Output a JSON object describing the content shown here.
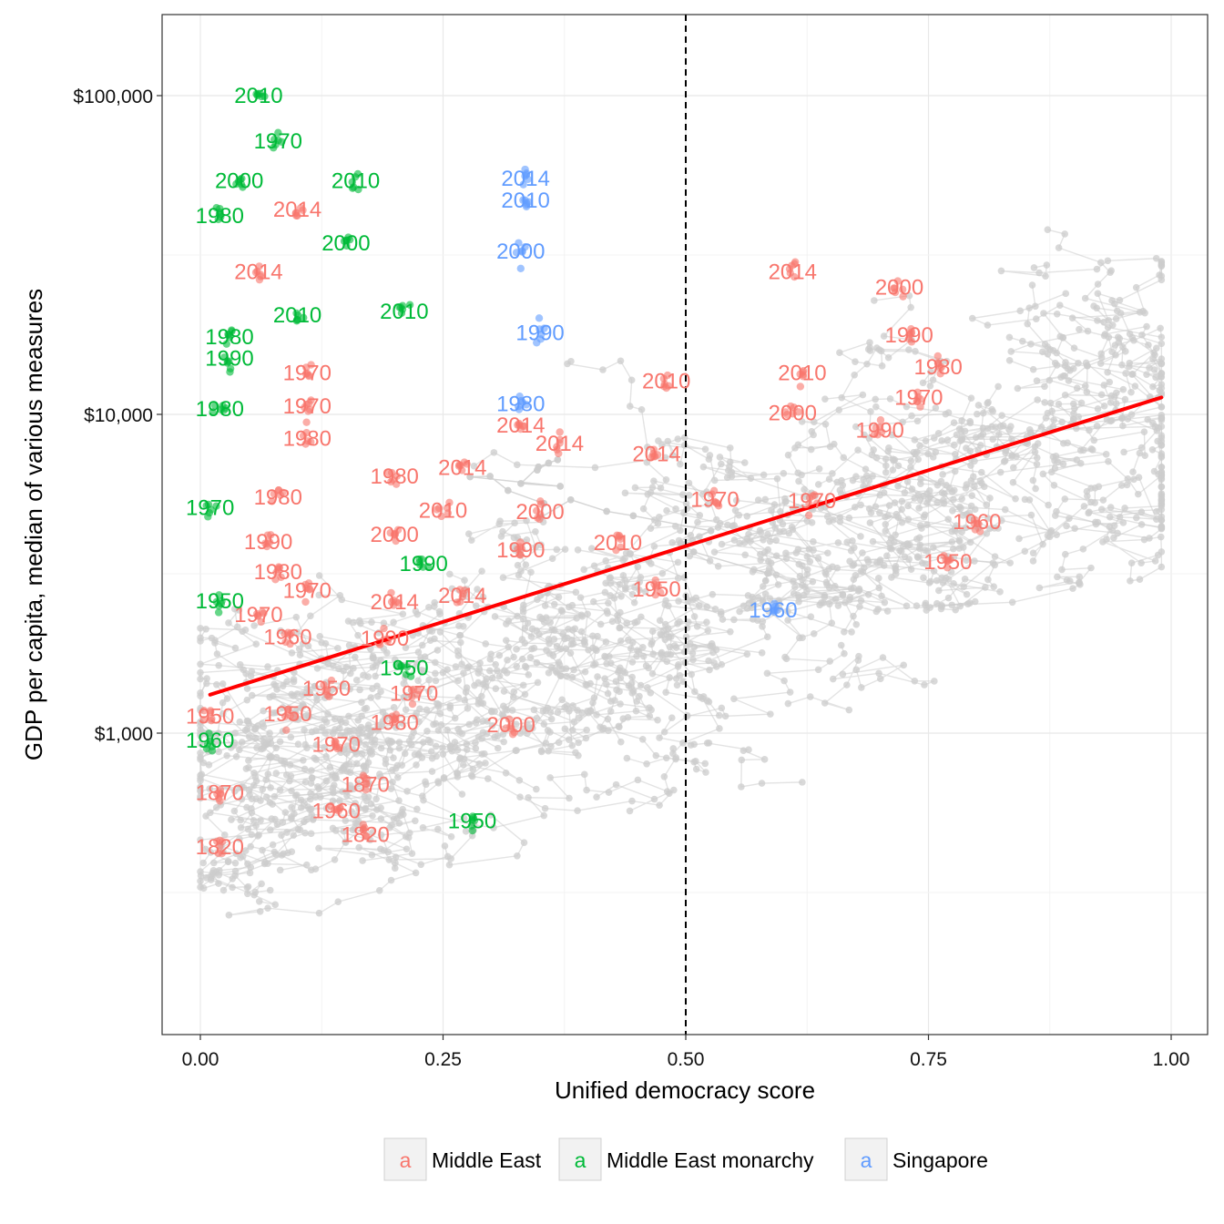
{
  "chart_data": {
    "type": "scatter",
    "xlabel": "Unified democracy score",
    "ylabel": "GDP per capita, median of various measures",
    "xlim": [
      -0.08,
      1.05
    ],
    "ylim": [
      150,
      200000
    ],
    "y_scale": "log10",
    "grid": true,
    "x_ticks": [
      {
        "value": 0.0,
        "label": "0.00"
      },
      {
        "value": 0.25,
        "label": "0.25"
      },
      {
        "value": 0.5,
        "label": "0.50"
      },
      {
        "value": 0.75,
        "label": "0.75"
      },
      {
        "value": 1.0,
        "label": "1.00"
      }
    ],
    "y_ticks": [
      {
        "value": 1000,
        "label": "$1,000"
      },
      {
        "value": 10000,
        "label": "$10,000"
      },
      {
        "value": 100000,
        "label": "$100,000"
      }
    ],
    "reference_line": {
      "x": 0.5,
      "style": "dashed"
    },
    "trend_line": {
      "x": [
        0.01,
        0.99
      ],
      "y": [
        1320,
        11300
      ],
      "color": "#ff0000"
    },
    "legend": {
      "placement": "bottom",
      "entries": [
        {
          "key_glyph": "a",
          "name": "Middle East",
          "color": "#f8766d"
        },
        {
          "key_glyph": "a",
          "name": "Middle East monarchy",
          "color": "#00ba38"
        },
        {
          "key_glyph": "a",
          "name": "Singapore",
          "color": "#619cff"
        }
      ]
    },
    "background_points_color": "#cccccc",
    "series": [
      {
        "name": "Middle East",
        "color": "#f8766d",
        "labels": [
          {
            "text": "2014",
            "x": 0.1,
            "y": 44000
          },
          {
            "text": "2014",
            "x": 0.06,
            "y": 28000
          },
          {
            "text": "1970",
            "x": 0.11,
            "y": 13500
          },
          {
            "text": "1970",
            "x": 0.11,
            "y": 10600
          },
          {
            "text": "1980",
            "x": 0.11,
            "y": 8400
          },
          {
            "text": "1980",
            "x": 0.2,
            "y": 6400
          },
          {
            "text": "1980",
            "x": 0.08,
            "y": 5500
          },
          {
            "text": "2014",
            "x": 0.27,
            "y": 6800
          },
          {
            "text": "2010",
            "x": 0.25,
            "y": 5000
          },
          {
            "text": "2000",
            "x": 0.2,
            "y": 4200
          },
          {
            "text": "1990",
            "x": 0.07,
            "y": 3980
          },
          {
            "text": "1980",
            "x": 0.08,
            "y": 3200
          },
          {
            "text": "1970",
            "x": 0.11,
            "y": 2800
          },
          {
            "text": "1970",
            "x": 0.06,
            "y": 2350
          },
          {
            "text": "1960",
            "x": 0.09,
            "y": 2000
          },
          {
            "text": "2014",
            "x": 0.2,
            "y": 2580
          },
          {
            "text": "2014",
            "x": 0.27,
            "y": 2700
          },
          {
            "text": "1990",
            "x": 0.19,
            "y": 1980
          },
          {
            "text": "1970",
            "x": 0.22,
            "y": 1330
          },
          {
            "text": "1950",
            "x": 0.13,
            "y": 1380
          },
          {
            "text": "1950",
            "x": 0.01,
            "y": 1130
          },
          {
            "text": "1950",
            "x": 0.09,
            "y": 1150
          },
          {
            "text": "1980",
            "x": 0.2,
            "y": 1080
          },
          {
            "text": "1970",
            "x": 0.14,
            "y": 920
          },
          {
            "text": "2000",
            "x": 0.32,
            "y": 1060
          },
          {
            "text": "1870",
            "x": 0.02,
            "y": 650
          },
          {
            "text": "1870",
            "x": 0.17,
            "y": 690
          },
          {
            "text": "1960",
            "x": 0.14,
            "y": 570
          },
          {
            "text": "1820",
            "x": 0.17,
            "y": 480
          },
          {
            "text": "1820",
            "x": 0.02,
            "y": 440
          },
          {
            "text": "2014",
            "x": 0.61,
            "y": 28000
          },
          {
            "text": "2000",
            "x": 0.72,
            "y": 25000
          },
          {
            "text": "1990",
            "x": 0.73,
            "y": 17700
          },
          {
            "text": "1980",
            "x": 0.76,
            "y": 14100
          },
          {
            "text": "1970",
            "x": 0.74,
            "y": 11300
          },
          {
            "text": "2010",
            "x": 0.62,
            "y": 13500
          },
          {
            "text": "2000",
            "x": 0.61,
            "y": 10100
          },
          {
            "text": "1990",
            "x": 0.7,
            "y": 8900
          },
          {
            "text": "1970",
            "x": 0.63,
            "y": 5350
          },
          {
            "text": "1960",
            "x": 0.8,
            "y": 4600
          },
          {
            "text": "1950",
            "x": 0.77,
            "y": 3450
          },
          {
            "text": "2010",
            "x": 0.48,
            "y": 12700
          },
          {
            "text": "2014",
            "x": 0.33,
            "y": 9250
          },
          {
            "text": "2014",
            "x": 0.37,
            "y": 8100
          },
          {
            "text": "2014",
            "x": 0.47,
            "y": 7500
          },
          {
            "text": "1970",
            "x": 0.53,
            "y": 5400
          },
          {
            "text": "2000",
            "x": 0.35,
            "y": 4950
          },
          {
            "text": "1990",
            "x": 0.33,
            "y": 3750
          },
          {
            "text": "2010",
            "x": 0.43,
            "y": 3950
          },
          {
            "text": "1950",
            "x": 0.47,
            "y": 2830
          }
        ]
      },
      {
        "name": "Middle East monarchy",
        "color": "#00ba38",
        "labels": [
          {
            "text": "2010",
            "x": 0.06,
            "y": 100000
          },
          {
            "text": "1970",
            "x": 0.08,
            "y": 72000
          },
          {
            "text": "2000",
            "x": 0.04,
            "y": 54000
          },
          {
            "text": "2010",
            "x": 0.16,
            "y": 54000
          },
          {
            "text": "1980",
            "x": 0.02,
            "y": 42000
          },
          {
            "text": "2000",
            "x": 0.15,
            "y": 34500
          },
          {
            "text": "2010",
            "x": 0.1,
            "y": 20500
          },
          {
            "text": "2010",
            "x": 0.21,
            "y": 21000
          },
          {
            "text": "1980",
            "x": 0.03,
            "y": 17500
          },
          {
            "text": "1990",
            "x": 0.03,
            "y": 15000
          },
          {
            "text": "1980",
            "x": 0.02,
            "y": 10400
          },
          {
            "text": "1970",
            "x": 0.01,
            "y": 5100
          },
          {
            "text": "1990",
            "x": 0.23,
            "y": 3400
          },
          {
            "text": "1950",
            "x": 0.02,
            "y": 2600
          },
          {
            "text": "1950",
            "x": 0.21,
            "y": 1600
          },
          {
            "text": "1960",
            "x": 0.01,
            "y": 950
          },
          {
            "text": "1950",
            "x": 0.28,
            "y": 530
          }
        ]
      },
      {
        "name": "Singapore",
        "color": "#619cff",
        "labels": [
          {
            "text": "2014",
            "x": 0.335,
            "y": 55000
          },
          {
            "text": "2010",
            "x": 0.335,
            "y": 47000
          },
          {
            "text": "2000",
            "x": 0.33,
            "y": 32500
          },
          {
            "text": "1990",
            "x": 0.35,
            "y": 18000
          },
          {
            "text": "1980",
            "x": 0.33,
            "y": 10800
          },
          {
            "text": "1960",
            "x": 0.59,
            "y": 2430
          }
        ]
      }
    ]
  }
}
